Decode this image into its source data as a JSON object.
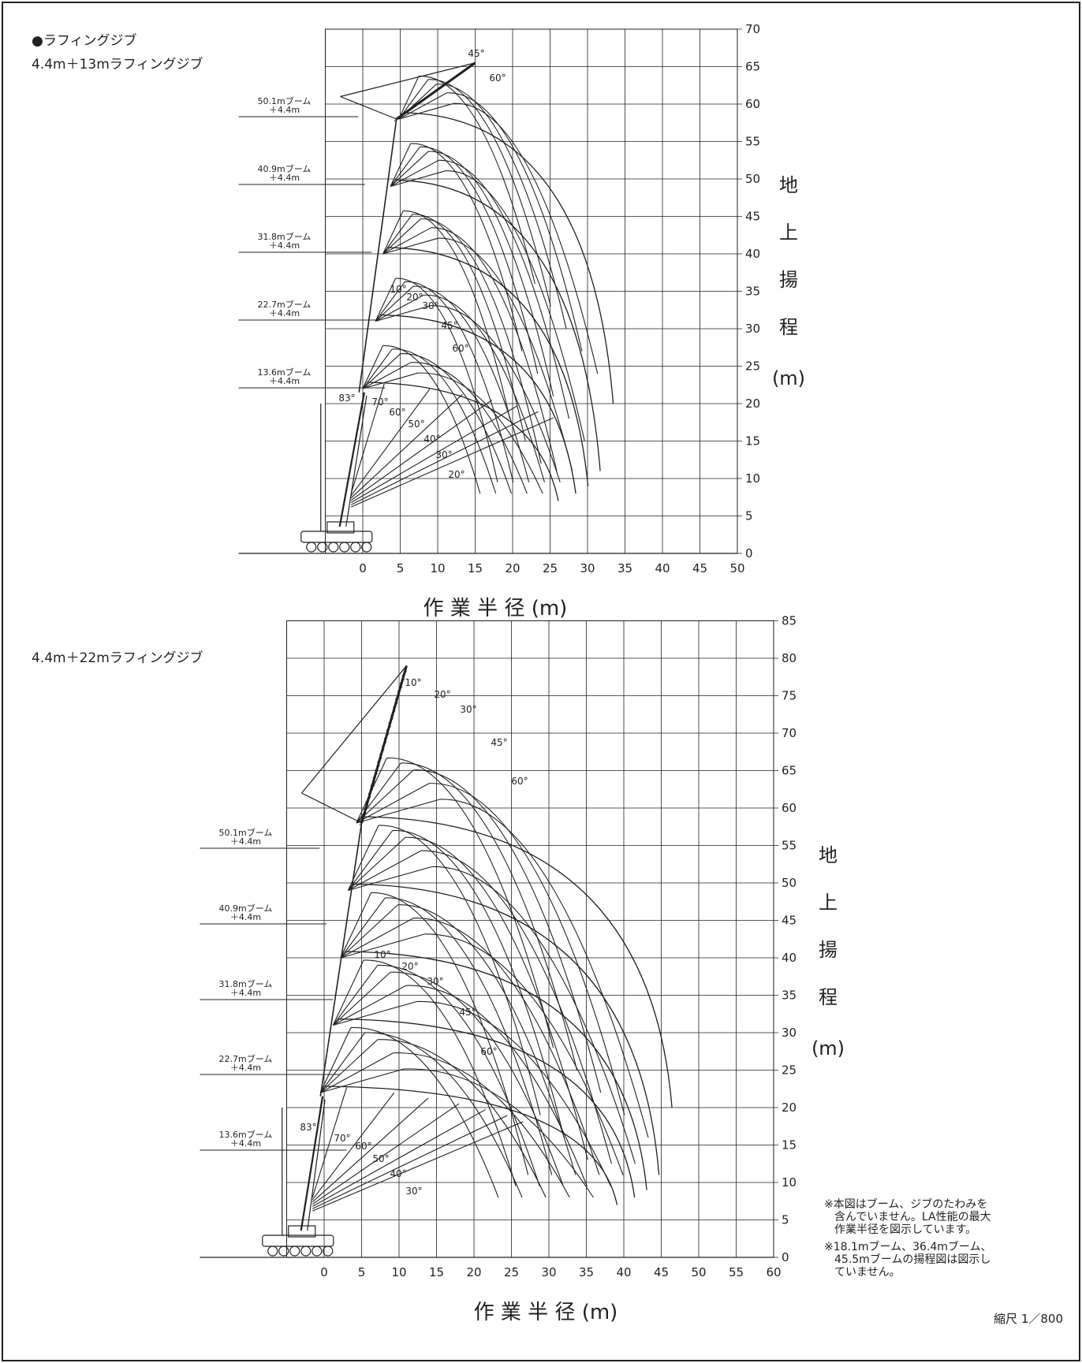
{
  "section_title": "●ラフィングジブ",
  "chart1": {
    "subtitle": "4.4m＋13mラフィングジブ",
    "x_ticks": [
      "0",
      "5",
      "10",
      "15",
      "20",
      "25",
      "30",
      "35",
      "40",
      "45",
      "50"
    ],
    "y_ticks": [
      "0",
      "5",
      "10",
      "15",
      "20",
      "25",
      "30",
      "35",
      "40",
      "45",
      "50",
      "55",
      "60",
      "65",
      "70"
    ],
    "xlabel": "作 業 半 径 (m)",
    "ylabel_chars": [
      "地",
      "上",
      "揚",
      "程",
      "(m)"
    ],
    "boom_labels": [
      {
        "name": "50.1mブーム",
        "jib": "＋4.4m"
      },
      {
        "name": "40.9mブーム",
        "jib": "＋4.4m"
      },
      {
        "name": "31.8mブーム",
        "jib": "＋4.4m"
      },
      {
        "name": "22.7mブーム",
        "jib": "＋4.4m"
      },
      {
        "name": "13.6mブーム",
        "jib": "＋4.4m"
      }
    ],
    "angle_labels": [
      "45°",
      "60°",
      "10°",
      "20°",
      "30°",
      "45°",
      "60°",
      "83°",
      "70°",
      "60°",
      "50°",
      "40°",
      "30°",
      "20°"
    ]
  },
  "chart2": {
    "subtitle": "4.4m＋22mラフィングジブ",
    "x_ticks": [
      "0",
      "5",
      "10",
      "15",
      "20",
      "25",
      "30",
      "35",
      "40",
      "45",
      "50",
      "55",
      "60"
    ],
    "y_ticks": [
      "0",
      "5",
      "10",
      "15",
      "20",
      "25",
      "30",
      "35",
      "40",
      "45",
      "50",
      "55",
      "60",
      "65",
      "70",
      "75",
      "80",
      "85"
    ],
    "xlabel": "作 業 半 径 (m)",
    "ylabel_chars": [
      "地",
      "上",
      "揚",
      "程",
      "(m)"
    ],
    "boom_labels": [
      {
        "name": "50.1mブーム",
        "jib": "＋4.4m"
      },
      {
        "name": "40.9mブーム",
        "jib": "＋4.4m"
      },
      {
        "name": "31.8mブーム",
        "jib": "＋4.4m"
      },
      {
        "name": "22.7mブーム",
        "jib": "＋4.4m"
      },
      {
        "name": "13.6mブーム",
        "jib": "＋4.4m"
      }
    ],
    "angle_labels": [
      "10°",
      "20°",
      "30°",
      "45°",
      "60°",
      "10°",
      "20°",
      "30°",
      "45°",
      "60°",
      "83°",
      "70°",
      "60°",
      "50°",
      "40°",
      "30°"
    ]
  },
  "notes": [
    "※本図はブーム、ジブのたわみを",
    "含んでいません。LA性能の最大",
    "作業半径を図示しています。",
    "※18.1mブーム、36.4mブーム、",
    "45.5mブームの揚程図は図示し",
    "ていません。"
  ],
  "scale": "縮尺 1／800"
}
